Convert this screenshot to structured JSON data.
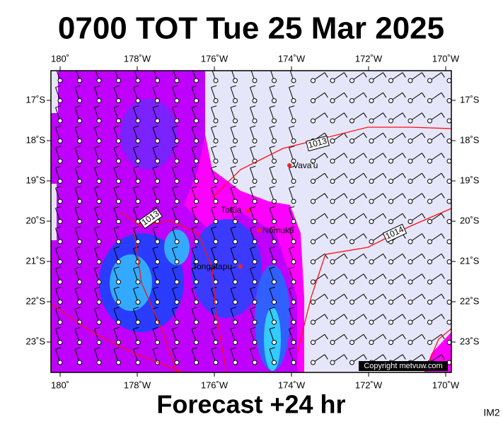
{
  "title": "0700 TOT Tue 25 Mar 2025",
  "lon_labels": [
    "180˚",
    "178˚W",
    "176˚W",
    "174˚W",
    "172˚W",
    "170˚W"
  ],
  "lat_labels": [
    "17˚S",
    "18˚S",
    "19˚S",
    "20˚S",
    "21˚S",
    "22˚S",
    "23˚S"
  ],
  "places": [
    "Vava'u",
    "Tofua",
    "Nomuka",
    "Tongatapu"
  ],
  "isobars": [
    "1013",
    "1013",
    "1014"
  ],
  "copyright": "Copyright metvuw.com",
  "footer": "Forecast +24 hr",
  "image_id": "IM2"
}
